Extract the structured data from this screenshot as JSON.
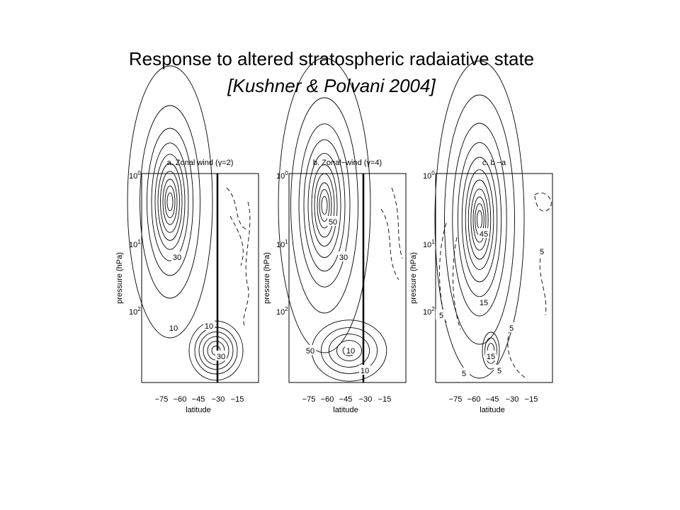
{
  "title": "Response to altered stratospheric radaiative state",
  "subtitle": "[Kushner & Polvani 2004]",
  "panels": [
    {
      "title": "a. Zonal wind (γ=2)",
      "y_label": "pressure (hPa)",
      "x_label": "latitude",
      "y_ticks": [
        {
          "base": "10",
          "exp": "0"
        },
        {
          "base": "10",
          "exp": "1"
        },
        {
          "base": "10",
          "exp": "2"
        }
      ],
      "x_ticks": [
        "−75",
        "−60",
        "−45",
        "−30",
        "−15"
      ],
      "contour_labels": [
        "30",
        "10",
        "10",
        "30"
      ]
    },
    {
      "title": "b. Zonal−wind (γ=4)",
      "y_label": "pressure (hPa)",
      "x_label": "latitude",
      "y_ticks": [
        {
          "base": "10",
          "exp": "0"
        },
        {
          "base": "10",
          "exp": "1"
        },
        {
          "base": "10",
          "exp": "2"
        }
      ],
      "x_ticks": [
        "−75",
        "−60",
        "−45",
        "−30",
        "−15"
      ],
      "contour_labels": [
        "50",
        "30",
        "10",
        "50",
        "10"
      ]
    },
    {
      "title": "c. b −a",
      "y_label": "pressure (hPa)",
      "x_label": "latitude",
      "y_ticks": [
        {
          "base": "10",
          "exp": "0"
        },
        {
          "base": "10",
          "exp": "1"
        },
        {
          "base": "10",
          "exp": "2"
        }
      ],
      "x_ticks": [
        "−75",
        "−60",
        "−45",
        "−30",
        "−15"
      ],
      "contour_labels": [
        "45",
        "15",
        "15",
        "5",
        "5",
        "5",
        "5",
        "5"
      ]
    }
  ]
}
